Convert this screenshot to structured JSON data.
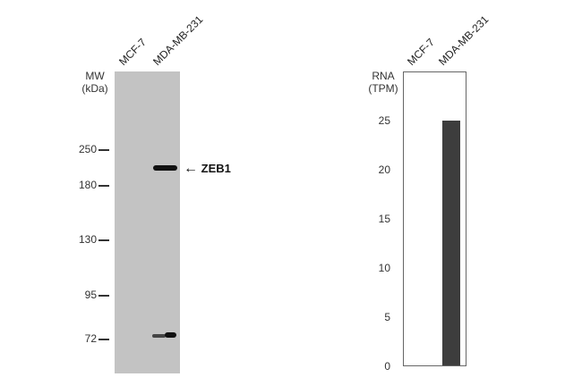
{
  "western_blot": {
    "lanes": [
      "MCF-7",
      "MDA-MB-231"
    ],
    "mw_header": [
      "MW",
      "(kDa)"
    ],
    "markers": [
      {
        "label": "250",
        "kda": 250
      },
      {
        "label": "180",
        "kda": 180
      },
      {
        "label": "130",
        "kda": 130
      },
      {
        "label": "95",
        "kda": 95
      },
      {
        "label": "72",
        "kda": 72
      }
    ],
    "target": {
      "arrow": "←",
      "label": "ZEB1"
    },
    "colors": {
      "membrane": "#c3c3c3",
      "band": "#111111"
    }
  },
  "chart_data": {
    "type": "bar",
    "categories": [
      "MCF-7",
      "MDA-MB-231"
    ],
    "values": [
      0,
      25
    ],
    "ylabel": "RNA (TPM)",
    "ylabel_lines": [
      "RNA",
      "(TPM)"
    ],
    "ylim": [
      0,
      30
    ],
    "yticks": [
      "0",
      "5",
      "10",
      "15",
      "20",
      "25"
    ],
    "grid": false,
    "bar_color": "#3d3d3d"
  }
}
